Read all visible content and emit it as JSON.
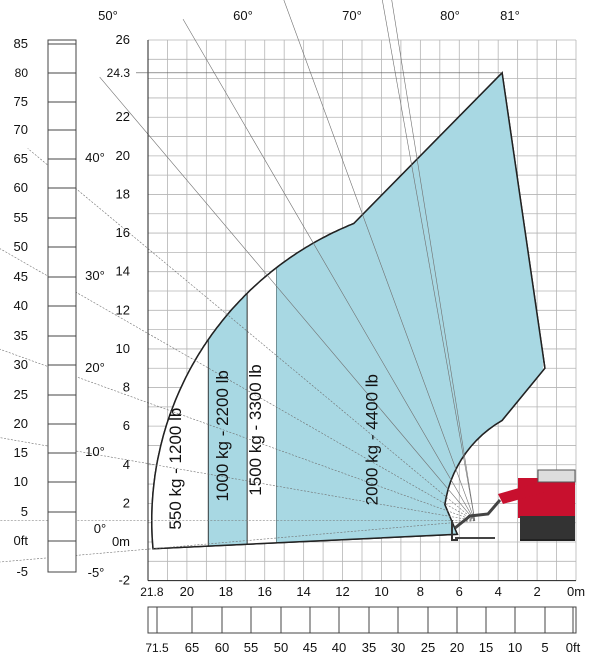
{
  "chart_data": {
    "type": "area",
    "title": "",
    "xlabel": "",
    "ylabel": "",
    "x_unit": "m",
    "y_unit": "m",
    "xlim": [
      0,
      22
    ],
    "ylim": [
      -2,
      26
    ],
    "grid": true,
    "x_ticks": [
      {
        "value": 21.8,
        "label": "21.8"
      },
      {
        "value": 20,
        "label": "20"
      },
      {
        "value": 18,
        "label": "18"
      },
      {
        "value": 16,
        "label": "16"
      },
      {
        "value": 14,
        "label": "14"
      },
      {
        "value": 12,
        "label": "12"
      },
      {
        "value": 10,
        "label": "10"
      },
      {
        "value": 8,
        "label": "8"
      },
      {
        "value": 6,
        "label": "6"
      },
      {
        "value": 4,
        "label": "4"
      },
      {
        "value": 2,
        "label": "2"
      },
      {
        "value": 0,
        "label": "0m"
      }
    ],
    "y_ticks": [
      {
        "value": 26,
        "label": "26"
      },
      {
        "value": 24.3,
        "label": "24.3"
      },
      {
        "value": 22,
        "label": "22"
      },
      {
        "value": 20,
        "label": "20"
      },
      {
        "value": 18,
        "label": "18"
      },
      {
        "value": 16,
        "label": "16"
      },
      {
        "value": 14,
        "label": "14"
      },
      {
        "value": 12,
        "label": "12"
      },
      {
        "value": 10,
        "label": "10"
      },
      {
        "value": 8,
        "label": "8"
      },
      {
        "value": 6,
        "label": "6"
      },
      {
        "value": 4,
        "label": "4"
      },
      {
        "value": 2,
        "label": "2"
      },
      {
        "value": 0,
        "label": "0m"
      },
      {
        "value": -2,
        "label": "-2"
      }
    ],
    "ft_left_labels": [
      "85",
      "80",
      "75",
      "70",
      "65",
      "60",
      "55",
      "50",
      "45",
      "40",
      "35",
      "30",
      "25",
      "20",
      "15",
      "10",
      "5",
      "0ft",
      "-5"
    ],
    "ft_bottom_labels": [
      "71.5",
      "65",
      "60",
      "55",
      "50",
      "45",
      "40",
      "35",
      "30",
      "25",
      "20",
      "15",
      "10",
      "5",
      "0ft"
    ],
    "boom_angles": [
      {
        "angle": 81,
        "label": "81°"
      },
      {
        "angle": 80,
        "label": "80°"
      },
      {
        "angle": 70,
        "label": "70°"
      },
      {
        "angle": 60,
        "label": "60°"
      },
      {
        "angle": 50,
        "label": "50°"
      },
      {
        "angle": 40,
        "label": "40°"
      },
      {
        "angle": 30,
        "label": "30°"
      },
      {
        "angle": 20,
        "label": "20°"
      },
      {
        "angle": 10,
        "label": "10°"
      },
      {
        "angle": 0,
        "label": "0°"
      },
      {
        "angle": -5,
        "label": "-5°"
      }
    ],
    "boom_pivot": {
      "x": 5.2,
      "y": 1.1
    },
    "reach_max_m": 21.8,
    "height_max_m": 24.3,
    "series": [
      {
        "name": "550 kg - 1200 lb",
        "color": "#ffffff",
        "x_range": [
          18.9,
          21.8
        ],
        "top_height": 14.0
      },
      {
        "name": "1000 kg - 2200 lb",
        "color": "#a8d8e3",
        "x_range": [
          16.9,
          18.9
        ],
        "top_height": 16.7
      },
      {
        "name": "1500 kg - 3300 lb",
        "color": "#ffffff",
        "x_range": [
          15.4,
          16.9
        ],
        "top_height": 18.8
      },
      {
        "name": "2000 kg - 4400 lb",
        "color": "#a8d8e3",
        "x_range": [
          1.7,
          15.4
        ],
        "top_height": 24.3
      }
    ]
  }
}
